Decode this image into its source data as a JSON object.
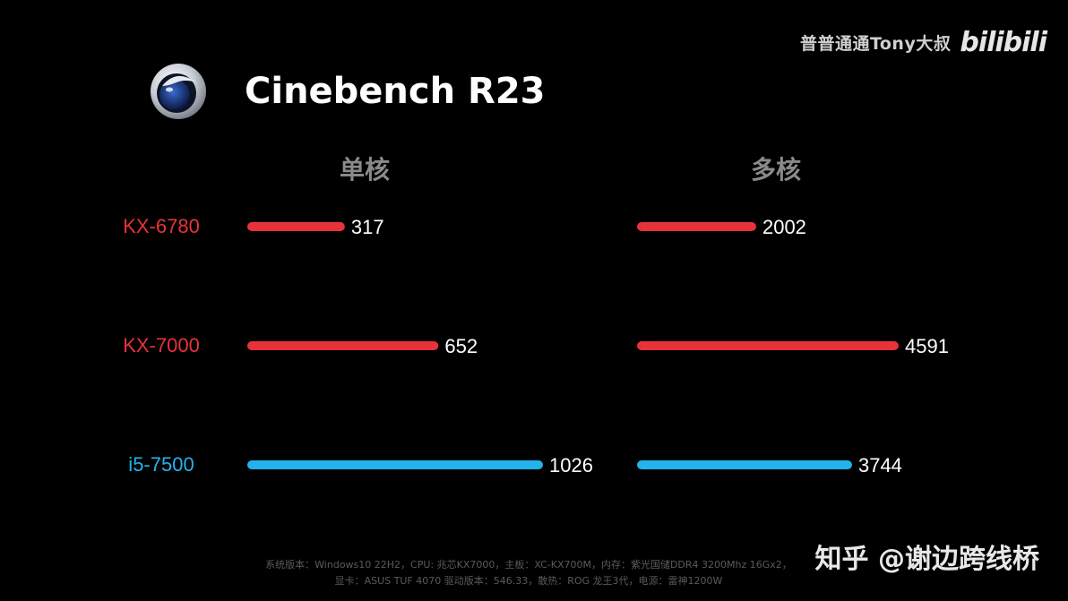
{
  "watermark": {
    "channel": "普普通通Tony大叔",
    "site": "bilibili",
    "credit": "知乎 @谢边跨线桥"
  },
  "header": {
    "title": "Cinebench R23",
    "logo_icon": "cinema4d-logo-icon"
  },
  "columns": {
    "single": "单核",
    "multi": "多核"
  },
  "footer": {
    "line1": "系统版本：Windows10 22H2，CPU: 兆芯KX7000，主板：XC-KX700M，内存：紫光国储DDR4 3200Mhz 16Gx2，",
    "line2": "显卡：ASUS TUF 4070 驱动版本：546.33，散热：ROG 龙王3代，电源：雷神1200W"
  },
  "colors": {
    "red": "#e8323a",
    "blue": "#23b3ec",
    "background": "#000000"
  },
  "chart_data": {
    "type": "bar",
    "title": "Cinebench R23",
    "categories": [
      "KX-6780",
      "KX-7000",
      "i5-7500"
    ],
    "category_colors": [
      "#e8323a",
      "#e8323a",
      "#23b3ec"
    ],
    "series": [
      {
        "name": "单核",
        "values": [
          317,
          652,
          1026
        ]
      },
      {
        "name": "多核",
        "values": [
          2002,
          4591,
          3744
        ]
      }
    ],
    "xlabel": "",
    "ylabel": "",
    "grid": false,
    "legend": "none"
  }
}
